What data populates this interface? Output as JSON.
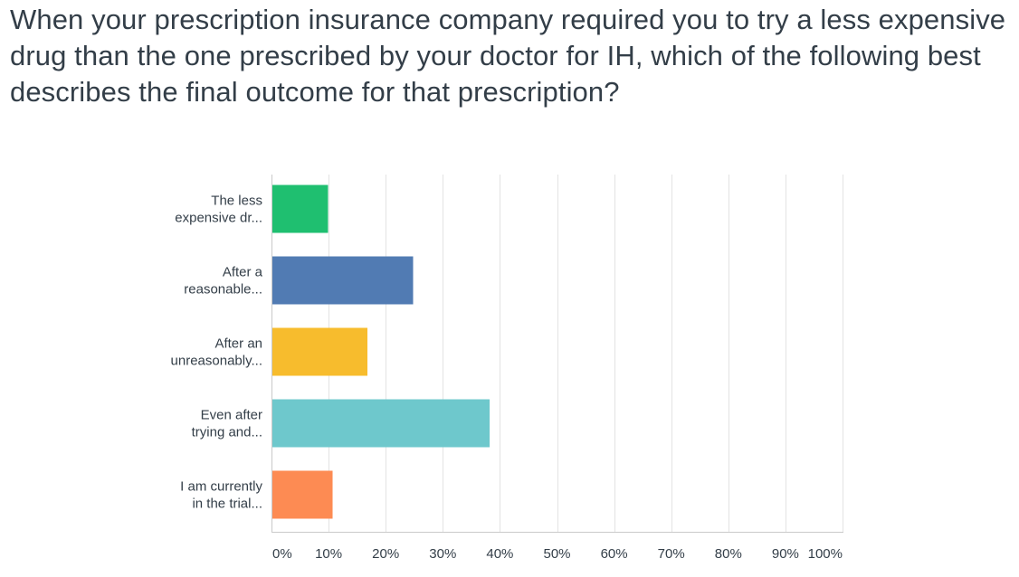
{
  "question": {
    "title": "When your prescription insurance company required you to try a less expensive drug than the one prescribed by your doctor for IH, which of the following best describes the final outcome for that prescription?"
  },
  "chart_data": {
    "type": "bar",
    "orientation": "horizontal",
    "title": "When your prescription insurance company required you to try a less expensive drug than the one prescribed by your doctor for IH, which of the following best describes the final outcome for that prescription?",
    "categories": [
      [
        "The less",
        "expensive dr..."
      ],
      [
        "After a",
        "reasonable..."
      ],
      [
        "After an",
        "unreasonably..."
      ],
      [
        "Even after",
        "trying and..."
      ],
      [
        "I am currently",
        "in the trial..."
      ]
    ],
    "values": [
      9.9,
      24.8,
      16.8,
      38.2,
      10.7
    ],
    "colors": [
      "#1fbf70",
      "#517bb3",
      "#f7bc2d",
      "#6ec8cc",
      "#fd8b53"
    ],
    "xlim": [
      0,
      100
    ],
    "x_ticks": [
      0,
      10,
      20,
      30,
      40,
      50,
      60,
      70,
      80,
      90,
      100
    ],
    "x_tick_labels": [
      "0%",
      "10%",
      "20%",
      "30%",
      "40%",
      "50%",
      "60%",
      "70%",
      "80%",
      "90%",
      "100%"
    ],
    "grid": true,
    "xlabel": "",
    "ylabel": ""
  }
}
